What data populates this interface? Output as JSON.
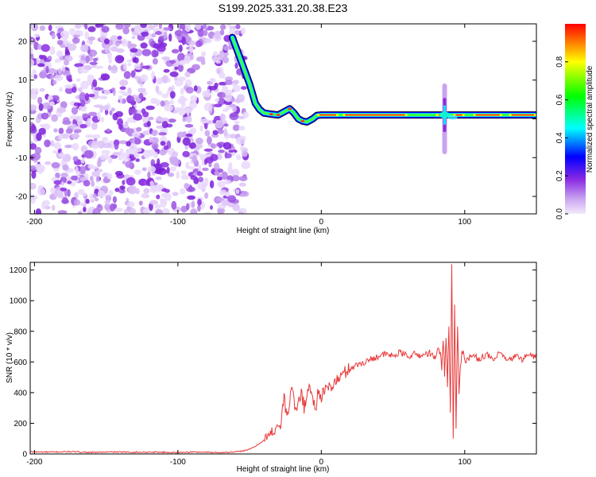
{
  "figure": {
    "title": "S199.2025.331.20.38.E23"
  },
  "chart_data": [
    {
      "type": "heatmap",
      "name": "spectrogram",
      "xlabel": "Height of straight line (km)",
      "ylabel": "Frequency (Hz)",
      "xlim": [
        -203,
        150
      ],
      "ylim": [
        -24.5,
        24.5
      ],
      "xticks": [
        -200,
        -100,
        0,
        100
      ],
      "yticks": [
        -20,
        -10,
        0,
        10,
        20
      ],
      "noise_region_x": [
        -203,
        -58
      ],
      "ridge_points": [
        [
          -62,
          21
        ],
        [
          -58,
          17
        ],
        [
          -54,
          13
        ],
        [
          -50,
          9
        ],
        [
          -46,
          4
        ],
        [
          -43,
          2.4
        ],
        [
          -40,
          1.5
        ],
        [
          -35,
          1.2
        ],
        [
          -30,
          1.0
        ],
        [
          -26,
          1.8
        ],
        [
          -22,
          2.6
        ],
        [
          -19,
          1.5
        ],
        [
          -16,
          0.0
        ],
        [
          -13,
          -0.6
        ],
        [
          -10,
          -0.8
        ],
        [
          -6,
          0.0
        ],
        [
          -3,
          0.9
        ],
        [
          0,
          1.0
        ],
        [
          150,
          1.0
        ]
      ],
      "burst_x": 86,
      "burst_freq_range": [
        -8.5,
        8.5
      ],
      "colorbar": {
        "label": "Normalized spectral amplitude",
        "range": [
          0,
          1
        ],
        "ticks": [
          0.0,
          0.2,
          0.4,
          0.6,
          0.8
        ],
        "tick_labels": [
          "0.0",
          "0.2",
          "0.4",
          "0.6",
          "0.8"
        ],
        "colors": [
          "#f4eafb",
          "#8a2be2",
          "#0000ff",
          "#00ffff",
          "#00ff00",
          "#ffff00",
          "#ff0000"
        ]
      }
    },
    {
      "type": "line",
      "name": "snr",
      "xlabel": "Height of straight line (km)",
      "ylabel": "SNR (10 * v/v)",
      "xlim": [
        -203,
        150
      ],
      "ylim": [
        0,
        1250
      ],
      "xticks": [
        -200,
        -100,
        0,
        100
      ],
      "yticks": [
        0,
        200,
        400,
        600,
        800,
        1000,
        1200
      ],
      "color": "#e8393a",
      "series": [
        {
          "name": "SNR",
          "x": [
            -203,
            -190,
            -175,
            -160,
            -145,
            -130,
            -115,
            -100,
            -90,
            -80,
            -70,
            -60,
            -55,
            -50,
            -45,
            -40,
            -35,
            -30,
            -28,
            -26,
            -24,
            -22,
            -20,
            -18,
            -16,
            -14,
            -12,
            -10,
            -8,
            -6,
            -4,
            -2,
            0,
            5,
            10,
            15,
            20,
            25,
            30,
            35,
            40,
            45,
            50,
            55,
            60,
            65,
            70,
            75,
            80,
            82,
            84,
            85,
            86,
            87,
            88,
            89,
            90,
            91,
            92,
            93,
            94,
            95,
            96,
            98,
            100,
            105,
            110,
            115,
            120,
            125,
            130,
            135,
            140,
            145,
            150
          ],
          "y": [
            14,
            12,
            15,
            10,
            13,
            11,
            12,
            9,
            13,
            11,
            10,
            12,
            20,
            30,
            55,
            90,
            130,
            200,
            170,
            400,
            220,
            350,
            450,
            260,
            330,
            420,
            300,
            380,
            460,
            350,
            300,
            420,
            380,
            430,
            470,
            520,
            560,
            580,
            600,
            620,
            640,
            650,
            640,
            660,
            640,
            650,
            640,
            660,
            620,
            700,
            580,
            730,
            520,
            780,
            450,
            860,
            280,
            1230,
            80,
            1000,
            150,
            820,
            420,
            700,
            610,
            640,
            620,
            650,
            610,
            660,
            600,
            640,
            620,
            650,
            630
          ]
        }
      ]
    }
  ]
}
